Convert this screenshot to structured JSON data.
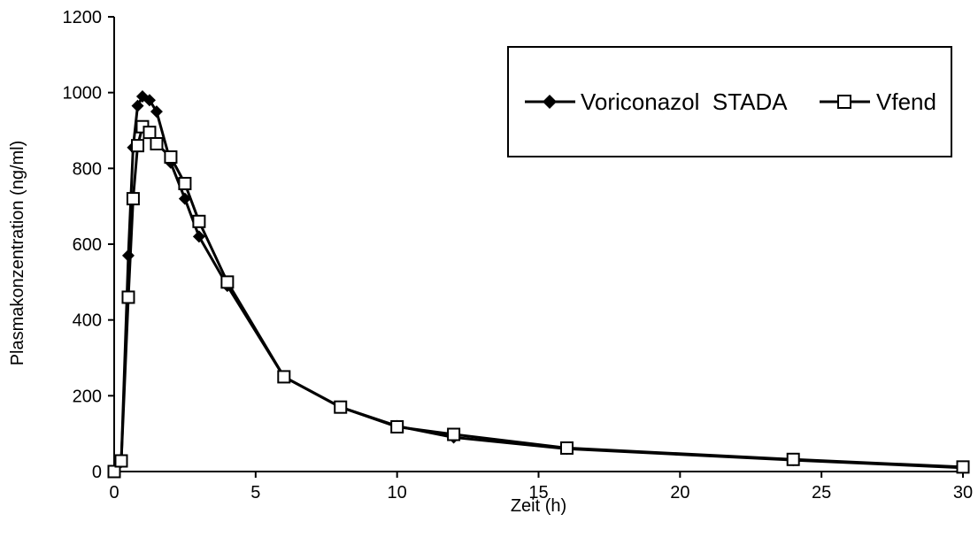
{
  "chart_data": {
    "type": "line",
    "xlabel": "Zeit (h)",
    "ylabel": "Plasmakonzentration (ng/ml)",
    "xlim": [
      0,
      30
    ],
    "ylim": [
      0,
      1200
    ],
    "x_ticks": [
      0,
      5,
      10,
      15,
      20,
      25,
      30
    ],
    "y_ticks": [
      0,
      200,
      400,
      600,
      800,
      1000,
      1200
    ],
    "grid": false,
    "legend_position": "top-right",
    "series": [
      {
        "name": "Voriconazol  STADA",
        "marker": "filled-diamond",
        "color": "#000000",
        "x": [
          0,
          0.25,
          0.5,
          0.67,
          0.83,
          1,
          1.25,
          1.5,
          2,
          2.5,
          3,
          4,
          6,
          8,
          10,
          12,
          16,
          24,
          30
        ],
        "y": [
          0,
          25,
          570,
          855,
          965,
          990,
          980,
          950,
          815,
          720,
          620,
          490,
          250,
          170,
          120,
          90,
          60,
          30,
          10
        ]
      },
      {
        "name": "Vfend",
        "marker": "open-square",
        "color": "#000000",
        "x": [
          0,
          0.25,
          0.5,
          0.67,
          0.83,
          1,
          1.25,
          1.5,
          2,
          2.5,
          3,
          4,
          6,
          8,
          10,
          12,
          16,
          24,
          30
        ],
        "y": [
          0,
          28,
          460,
          720,
          860,
          910,
          895,
          865,
          830,
          760,
          660,
          500,
          250,
          170,
          118,
          98,
          62,
          32,
          12
        ]
      }
    ]
  }
}
